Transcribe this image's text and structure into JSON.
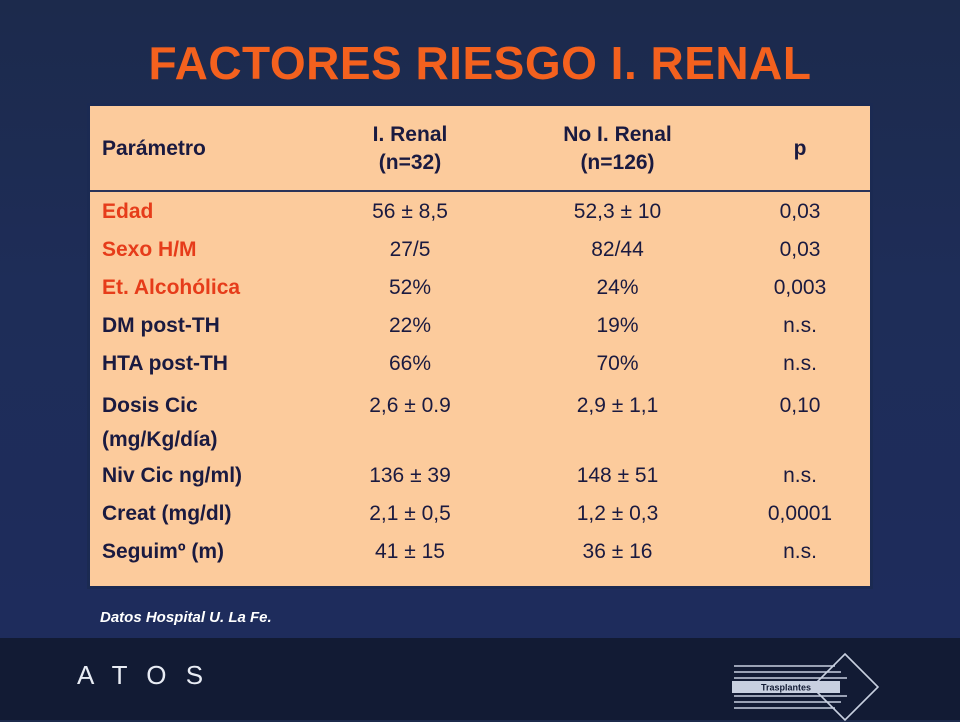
{
  "slide": {
    "title": "FACTORES RIESGO I. RENAL",
    "source": "Datos Hospital U. La Fe.",
    "footer_brand": "A T O S",
    "logo_text": "Trasplantes"
  },
  "table": {
    "headers": [
      [
        "Parámetro"
      ],
      [
        "I. Renal",
        "(n=32)"
      ],
      [
        "No I. Renal",
        "(n=126)"
      ],
      [
        "p"
      ]
    ],
    "rows": [
      {
        "param": [
          "Edad"
        ],
        "renal": "56 ± 8,5",
        "no_renal": "52,3 ± 10",
        "p": "0,03",
        "highlight": true
      },
      {
        "param": [
          "Sexo H/M"
        ],
        "renal": "27/5",
        "no_renal": "82/44",
        "p": "0,03",
        "highlight": true
      },
      {
        "param": [
          "Et. Alcohólica"
        ],
        "renal": "52%",
        "no_renal": "24%",
        "p": "0,003",
        "highlight": true
      },
      {
        "param": [
          "DM post-TH"
        ],
        "renal": "22%",
        "no_renal": "19%",
        "p": "n.s.",
        "highlight": false
      },
      {
        "param": [
          "HTA post-TH"
        ],
        "renal": "66%",
        "no_renal": "70%",
        "p": "n.s.",
        "highlight": false
      },
      {
        "param": [
          "Dosis Cic",
          "(mg/Kg/día)"
        ],
        "renal": "2,6 ± 0.9",
        "no_renal": "2,9 ± 1,1",
        "p": "0,10",
        "highlight": false
      },
      {
        "param": [
          "Niv Cic ng/ml)"
        ],
        "renal": "136 ± 39",
        "no_renal": "148 ± 51",
        "p": "n.s.",
        "highlight": false
      },
      {
        "param": [
          "Creat (mg/dl)"
        ],
        "renal": "2,1 ± 0,5",
        "no_renal": "1,2 ± 0,3",
        "p": "0,0001",
        "highlight": false
      },
      {
        "param": [
          "Seguimº (m)"
        ],
        "renal": "41 ± 15",
        "no_renal": "36 ± 16",
        "p": "n.s.",
        "highlight": false
      }
    ]
  },
  "colors": {
    "title": "#f4611e",
    "table_bg": "#fccb9c",
    "highlight_text": "#e63c1a",
    "body_text": "#1a1a40"
  }
}
